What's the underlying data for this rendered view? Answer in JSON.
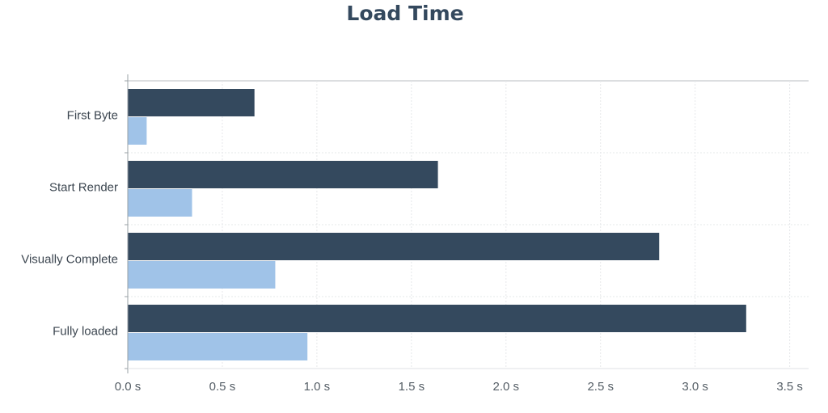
{
  "chart_data": {
    "type": "bar",
    "orientation": "horizontal",
    "title": "Load Time",
    "xlabel": "",
    "ylabel": "",
    "categories": [
      "First Byte",
      "Start Render",
      "Visually Complete",
      "Fully loaded"
    ],
    "series": [
      {
        "values": [
          0.67,
          1.64,
          2.81,
          3.27
        ],
        "color": "#34495e"
      },
      {
        "values": [
          0.1,
          0.34,
          0.78,
          0.95
        ],
        "color": "#a0c3e8"
      }
    ],
    "xlim": [
      0,
      3.6
    ],
    "xticks": [
      0,
      0.5,
      1.0,
      1.5,
      2.0,
      2.5,
      3.0,
      3.5
    ],
    "xtick_labels": [
      "0.0 s",
      "0.5 s",
      "1.0 s",
      "1.5 s",
      "2.0 s",
      "2.5 s",
      "3.0 s",
      "3.5 s"
    ],
    "grid": true,
    "legend": "none"
  }
}
